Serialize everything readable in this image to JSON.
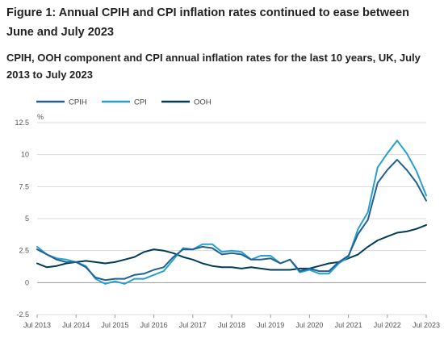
{
  "header": {
    "title": "Figure 1: Annual CPIH and CPI inflation rates continued to ease between June and July 2023",
    "subtitle": "CPIH, OOH component and CPI annual inflation rates for the last 10 years, UK, July 2013 to July 2023"
  },
  "colors": {
    "CPIH": "#206095",
    "CPI": "#27a0cc",
    "OOH": "#003c57",
    "grid": "#d9d9d9",
    "zero": "#999999"
  },
  "chart_data": {
    "type": "line",
    "title": "Figure 1: Annual CPIH and CPI inflation rates continued to ease between June and July 2023",
    "subtitle": "CPIH, OOH component and CPI annual inflation rates for the last 10 years, UK, July 2013 to July 2023",
    "ylabel": "%",
    "ylim": [
      -2.5,
      12.5
    ],
    "yticks": [
      "-2.5",
      "0",
      "2.5",
      "5",
      "7.5",
      "10",
      "12.5"
    ],
    "ytick_values": [
      -2.5,
      0,
      2.5,
      5,
      7.5,
      10,
      12.5
    ],
    "xticks": [
      "Jul 2013",
      "Jul 2014",
      "Jul 2015",
      "Jul 2016",
      "Jul 2017",
      "Jul 2018",
      "Jul 2019",
      "Jul 2020",
      "Jul 2021",
      "Jul 2022",
      "Jul 2023"
    ],
    "xlim": [
      "Jul 2013",
      "Jul 2023"
    ],
    "grid": true,
    "legend_position": "top-left",
    "series": [
      {
        "name": "CPIH",
        "points": [
          [
            "Jul 2013",
            2.6
          ],
          [
            "Oct 2013",
            2.2
          ],
          [
            "Jan 2014",
            1.8
          ],
          [
            "Apr 2014",
            1.6
          ],
          [
            "Jul 2014",
            1.6
          ],
          [
            "Oct 2014",
            1.2
          ],
          [
            "Jan 2015",
            0.4
          ],
          [
            "Apr 2015",
            0.2
          ],
          [
            "Jul 2015",
            0.3
          ],
          [
            "Oct 2015",
            0.3
          ],
          [
            "Jan 2016",
            0.6
          ],
          [
            "Apr 2016",
            0.7
          ],
          [
            "Jul 2016",
            1.0
          ],
          [
            "Oct 2016",
            1.2
          ],
          [
            "Jan 2017",
            2.0
          ],
          [
            "Apr 2017",
            2.6
          ],
          [
            "Jul 2017",
            2.6
          ],
          [
            "Oct 2017",
            2.8
          ],
          [
            "Jan 2018",
            2.7
          ],
          [
            "Apr 2018",
            2.2
          ],
          [
            "Jul 2018",
            2.3
          ],
          [
            "Oct 2018",
            2.2
          ],
          [
            "Jan 2019",
            1.8
          ],
          [
            "Apr 2019",
            1.8
          ],
          [
            "Jul 2019",
            1.9
          ],
          [
            "Oct 2019",
            1.5
          ],
          [
            "Jan 2020",
            1.8
          ],
          [
            "Apr 2020",
            0.9
          ],
          [
            "Jul 2020",
            1.1
          ],
          [
            "Oct 2020",
            0.9
          ],
          [
            "Jan 2021",
            0.9
          ],
          [
            "Apr 2021",
            1.6
          ],
          [
            "Jul 2021",
            2.1
          ],
          [
            "Oct 2021",
            3.8
          ],
          [
            "Jan 2022",
            4.9
          ],
          [
            "Apr 2022",
            7.8
          ],
          [
            "Jul 2022",
            8.8
          ],
          [
            "Oct 2022",
            9.6
          ],
          [
            "Jan 2023",
            8.8
          ],
          [
            "Apr 2023",
            7.8
          ],
          [
            "Jul 2023",
            6.4
          ]
        ]
      },
      {
        "name": "CPI",
        "points": [
          [
            "Jul 2013",
            2.8
          ],
          [
            "Oct 2013",
            2.2
          ],
          [
            "Jan 2014",
            1.9
          ],
          [
            "Apr 2014",
            1.8
          ],
          [
            "Jul 2014",
            1.6
          ],
          [
            "Oct 2014",
            1.3
          ],
          [
            "Jan 2015",
            0.3
          ],
          [
            "Apr 2015",
            -0.1
          ],
          [
            "Jul 2015",
            0.1
          ],
          [
            "Oct 2015",
            -0.1
          ],
          [
            "Jan 2016",
            0.3
          ],
          [
            "Apr 2016",
            0.3
          ],
          [
            "Jul 2016",
            0.6
          ],
          [
            "Oct 2016",
            0.9
          ],
          [
            "Jan 2017",
            1.8
          ],
          [
            "Apr 2017",
            2.7
          ],
          [
            "Jul 2017",
            2.6
          ],
          [
            "Oct 2017",
            3.0
          ],
          [
            "Jan 2018",
            3.0
          ],
          [
            "Apr 2018",
            2.4
          ],
          [
            "Jul 2018",
            2.5
          ],
          [
            "Oct 2018",
            2.4
          ],
          [
            "Jan 2019",
            1.8
          ],
          [
            "Apr 2019",
            2.1
          ],
          [
            "Jul 2019",
            2.1
          ],
          [
            "Oct 2019",
            1.5
          ],
          [
            "Jan 2020",
            1.8
          ],
          [
            "Apr 2020",
            0.8
          ],
          [
            "Jul 2020",
            1.0
          ],
          [
            "Oct 2020",
            0.7
          ],
          [
            "Jan 2021",
            0.7
          ],
          [
            "Apr 2021",
            1.5
          ],
          [
            "Jul 2021",
            2.0
          ],
          [
            "Oct 2021",
            4.2
          ],
          [
            "Jan 2022",
            5.5
          ],
          [
            "Apr 2022",
            9.0
          ],
          [
            "Jul 2022",
            10.1
          ],
          [
            "Oct 2022",
            11.1
          ],
          [
            "Jan 2023",
            10.1
          ],
          [
            "Apr 2023",
            8.7
          ],
          [
            "Jul 2023",
            6.8
          ]
        ]
      },
      {
        "name": "OOH",
        "points": [
          [
            "Jul 2013",
            1.5
          ],
          [
            "Oct 2013",
            1.2
          ],
          [
            "Jan 2014",
            1.3
          ],
          [
            "Apr 2014",
            1.5
          ],
          [
            "Jul 2014",
            1.6
          ],
          [
            "Oct 2014",
            1.7
          ],
          [
            "Jan 2015",
            1.6
          ],
          [
            "Apr 2015",
            1.5
          ],
          [
            "Jul 2015",
            1.6
          ],
          [
            "Oct 2015",
            1.8
          ],
          [
            "Jan 2016",
            2.0
          ],
          [
            "Apr 2016",
            2.4
          ],
          [
            "Jul 2016",
            2.6
          ],
          [
            "Oct 2016",
            2.5
          ],
          [
            "Jan 2017",
            2.3
          ],
          [
            "Apr 2017",
            2.0
          ],
          [
            "Jul 2017",
            1.8
          ],
          [
            "Oct 2017",
            1.5
          ],
          [
            "Jan 2018",
            1.3
          ],
          [
            "Apr 2018",
            1.2
          ],
          [
            "Jul 2018",
            1.2
          ],
          [
            "Oct 2018",
            1.1
          ],
          [
            "Jan 2019",
            1.2
          ],
          [
            "Apr 2019",
            1.1
          ],
          [
            "Jul 2019",
            1.0
          ],
          [
            "Oct 2019",
            1.0
          ],
          [
            "Jan 2020",
            1.0
          ],
          [
            "Apr 2020",
            1.1
          ],
          [
            "Jul 2020",
            1.1
          ],
          [
            "Oct 2020",
            1.3
          ],
          [
            "Jan 2021",
            1.5
          ],
          [
            "Apr 2021",
            1.6
          ],
          [
            "Jul 2021",
            1.9
          ],
          [
            "Oct 2021",
            2.2
          ],
          [
            "Jan 2022",
            2.8
          ],
          [
            "Apr 2022",
            3.3
          ],
          [
            "Jul 2022",
            3.6
          ],
          [
            "Oct 2022",
            3.9
          ],
          [
            "Jan 2023",
            4.0
          ],
          [
            "Apr 2023",
            4.2
          ],
          [
            "Jul 2023",
            4.5
          ]
        ]
      }
    ]
  }
}
